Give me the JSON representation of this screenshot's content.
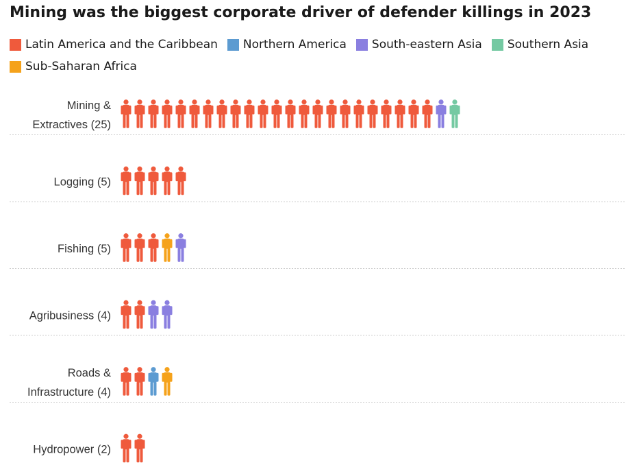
{
  "title": "Mining was the biggest corporate driver of defender killings in 2023",
  "legend": [
    {
      "key": "latam",
      "label": "Latin America and the Caribbean",
      "color": "#EF5A3C"
    },
    {
      "key": "namer",
      "label": "Northern America",
      "color": "#5C9BD1"
    },
    {
      "key": "seasia",
      "label": "South-eastern Asia",
      "color": "#8A7FE0"
    },
    {
      "key": "sasia",
      "label": "Southern Asia",
      "color": "#74C9A2"
    },
    {
      "key": "ssa",
      "label": "Sub-Saharan Africa",
      "color": "#F5A21B"
    }
  ],
  "chart_data": {
    "type": "bar",
    "title": "Mining was the biggest corporate driver of defender killings in 2023",
    "categories": [
      [
        "Mining &",
        "Extractives (25)"
      ],
      [
        "Logging (5)"
      ],
      [
        "Fishing (5)"
      ],
      [
        "Agribusiness (4)"
      ],
      [
        "Roads &",
        "Infrastructure (4)"
      ],
      [
        "Hydropower (2)"
      ]
    ],
    "series": [
      {
        "name": "Latin America and the Caribbean",
        "values": [
          23,
          5,
          3,
          2,
          2,
          2
        ]
      },
      {
        "name": "Northern America",
        "values": [
          0,
          0,
          0,
          0,
          1,
          0
        ]
      },
      {
        "name": "South-eastern Asia",
        "values": [
          1,
          0,
          1,
          2,
          0,
          0
        ]
      },
      {
        "name": "Southern Asia",
        "values": [
          1,
          0,
          0,
          0,
          0,
          0
        ]
      },
      {
        "name": "Sub-Saharan Africa",
        "values": [
          0,
          0,
          1,
          0,
          1,
          0
        ]
      }
    ],
    "sequences": [
      [
        "latam",
        "latam",
        "latam",
        "latam",
        "latam",
        "latam",
        "latam",
        "latam",
        "latam",
        "latam",
        "latam",
        "latam",
        "latam",
        "latam",
        "latam",
        "latam",
        "latam",
        "latam",
        "latam",
        "latam",
        "latam",
        "latam",
        "latam",
        "seasia",
        "sasia"
      ],
      [
        "latam",
        "latam",
        "latam",
        "latam",
        "latam"
      ],
      [
        "latam",
        "latam",
        "latam",
        "ssa",
        "seasia"
      ],
      [
        "latam",
        "latam",
        "seasia",
        "seasia"
      ],
      [
        "latam",
        "latam",
        "namer",
        "ssa"
      ],
      [
        "latam",
        "latam"
      ]
    ],
    "unit": "one figure = one defender killed",
    "grid": "dotted separators between rows",
    "legend_position": "top"
  }
}
